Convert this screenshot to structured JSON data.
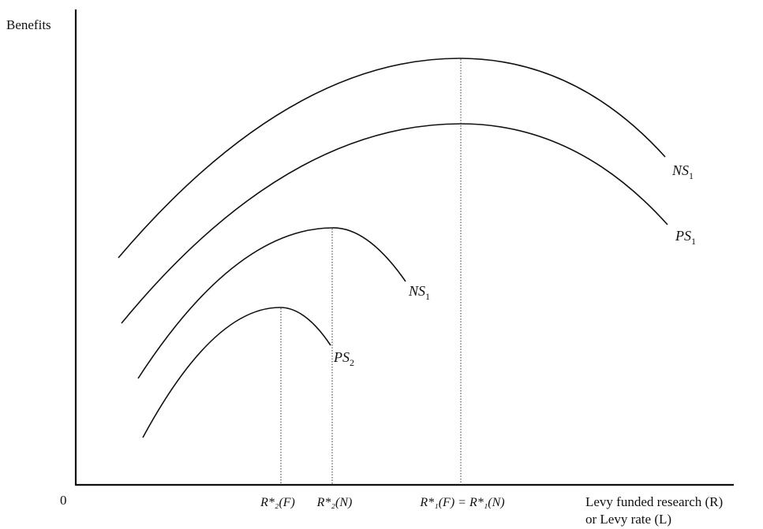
{
  "axes": {
    "y_label": "Benefits",
    "origin_label": "0",
    "x_label_line1": "Levy funded research (R)",
    "x_label_line2": "or Levy rate (L)"
  },
  "curves": [
    {
      "id": "ns1-outer",
      "label_main": "NS",
      "label_sub": "1"
    },
    {
      "id": "ps1",
      "label_main": "PS",
      "label_sub": "1"
    },
    {
      "id": "ns1-inner",
      "label_main": "NS",
      "label_sub": "1"
    },
    {
      "id": "ps2",
      "label_main": "PS",
      "label_sub": "2"
    }
  ],
  "x_ticks": [
    {
      "id": "r2-f",
      "text": "R*₂(F)"
    },
    {
      "id": "r2-n",
      "text": "R*₂(N)"
    },
    {
      "id": "r1",
      "text": "R*₁(F) = R*₁(N)"
    }
  ]
}
